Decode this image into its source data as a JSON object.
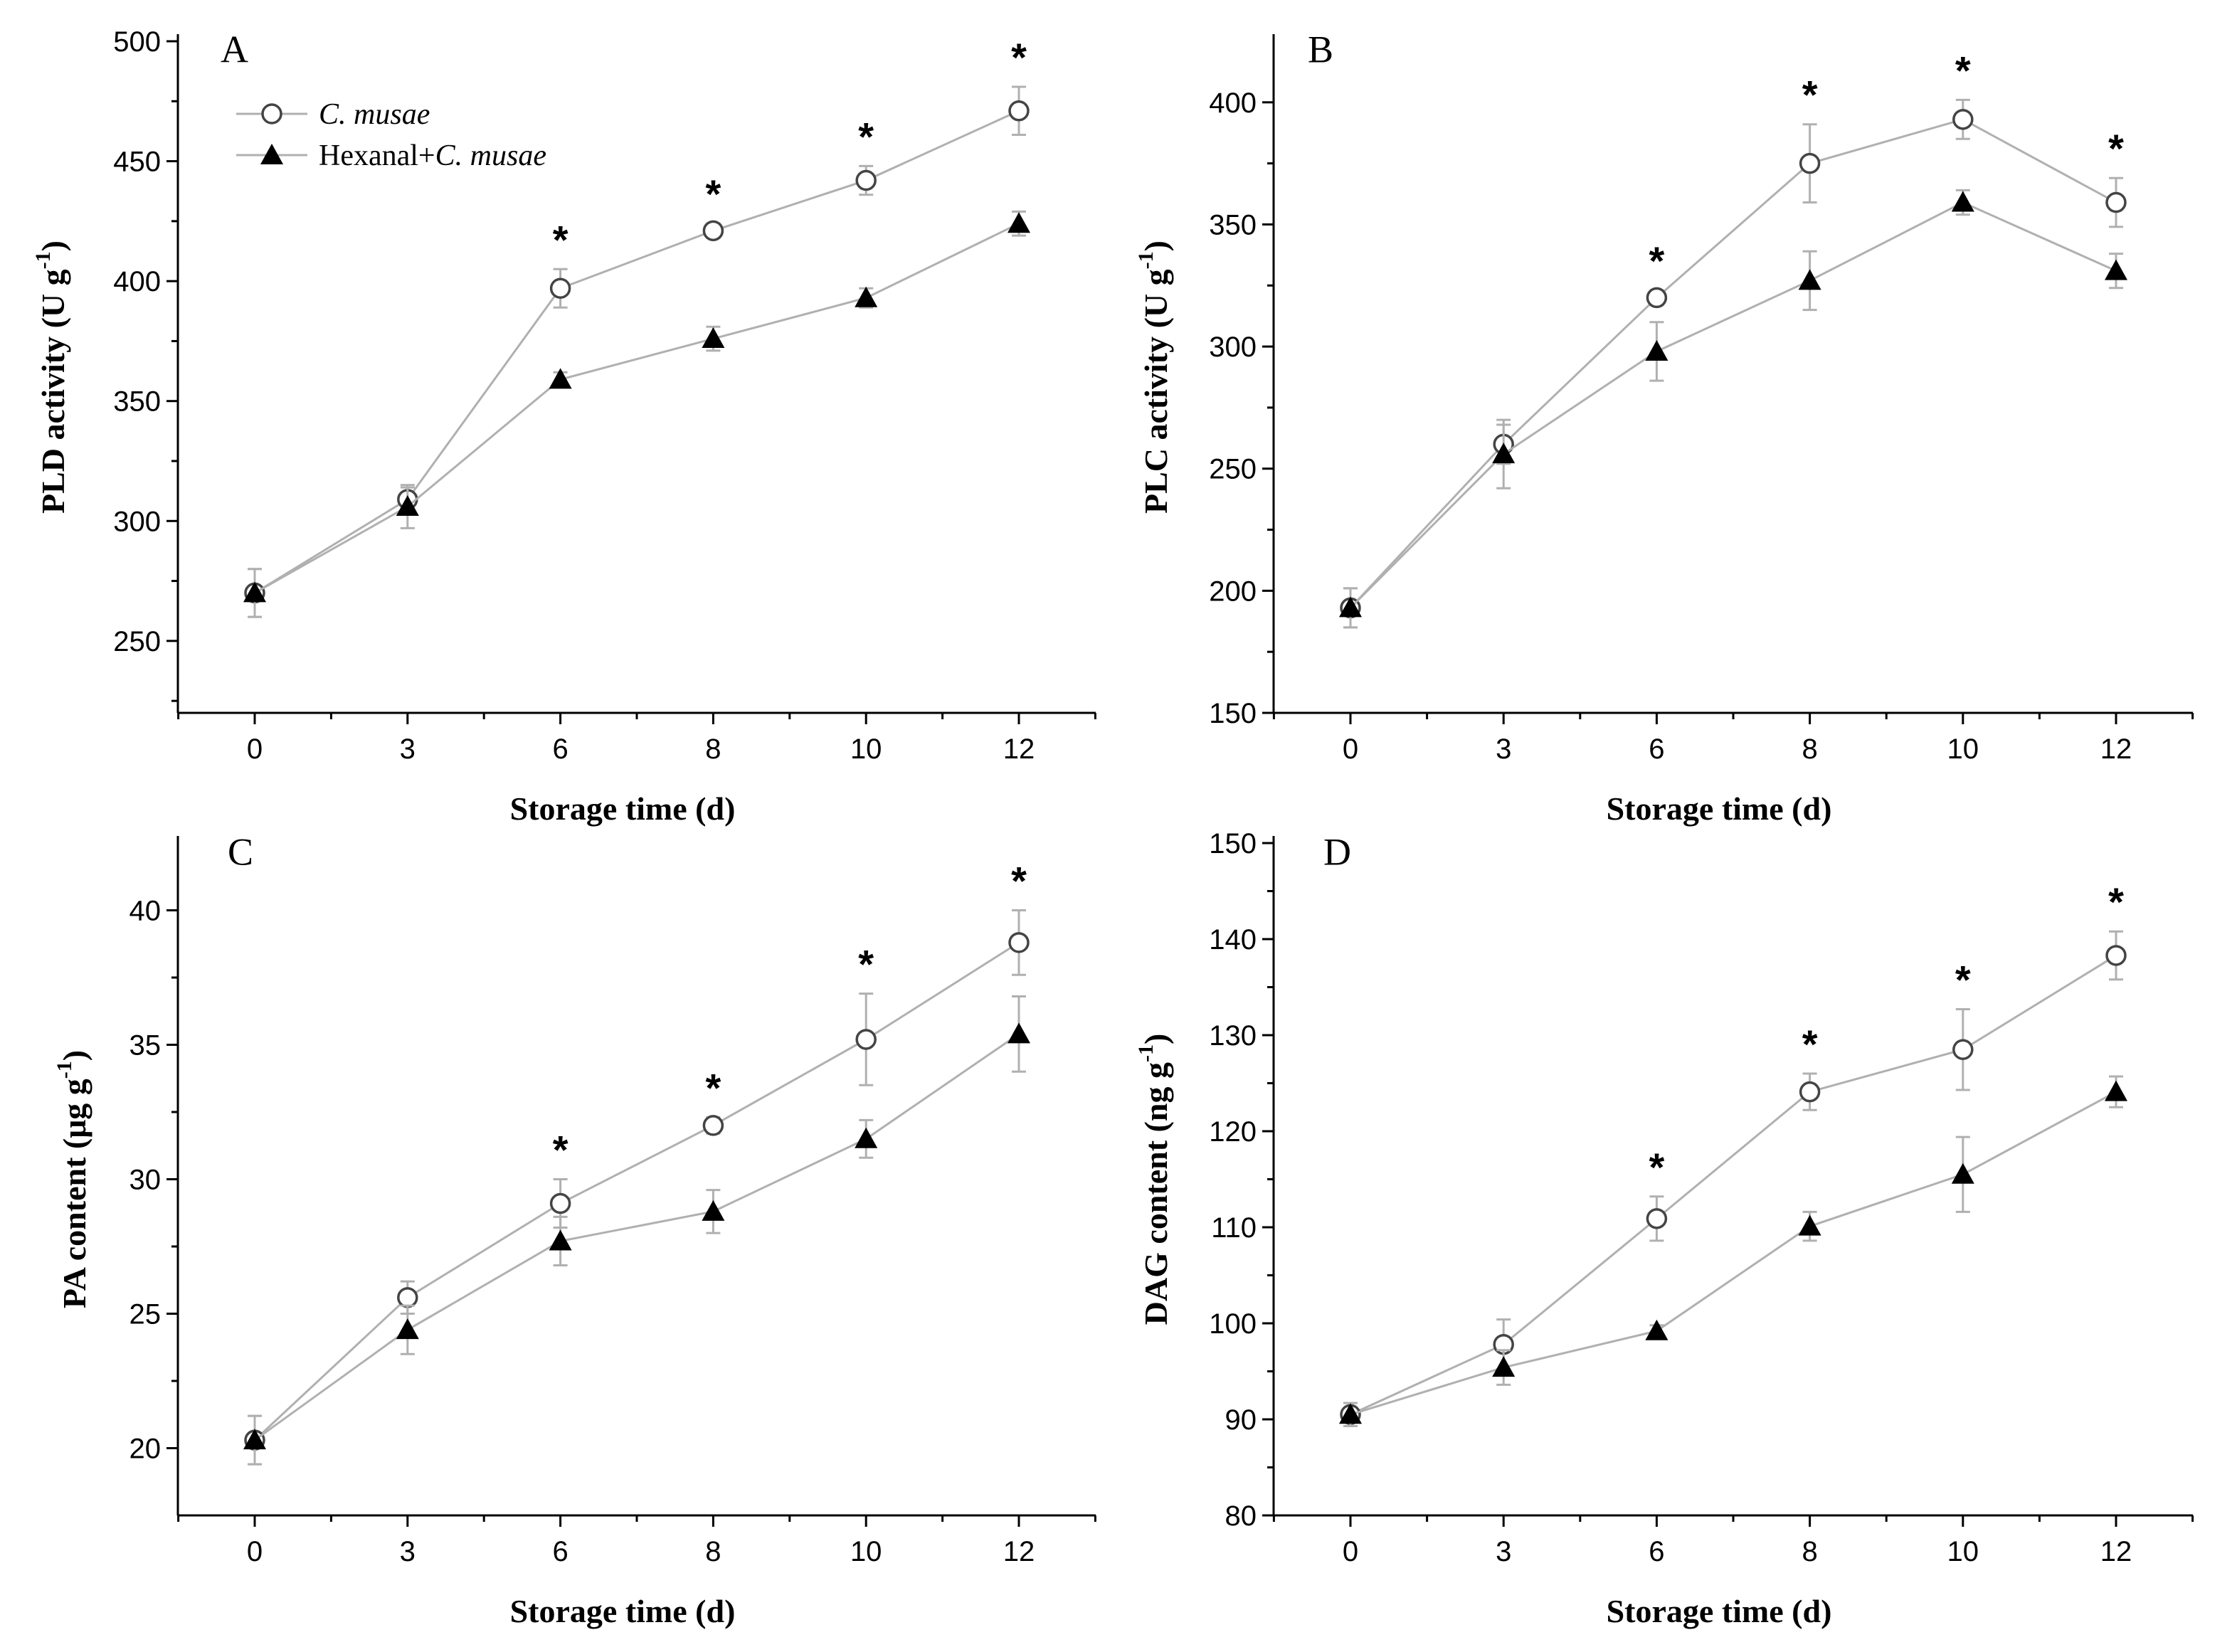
{
  "figure": {
    "legend": [
      {
        "name": "C. musae",
        "italic_part": "C. musae",
        "prefix": "",
        "marker": "open-circle"
      },
      {
        "name": "Hexanal+C. musae",
        "italic_part": "C. musae",
        "prefix": "Hexanal+",
        "marker": "filled-triangle"
      }
    ],
    "colors": {
      "line": "#b0b0b0",
      "axis": "#000000",
      "marker_fill": "#000000",
      "open_fill": "#ffffff"
    }
  },
  "chart_data": [
    {
      "type": "line",
      "panel": "A",
      "title": "",
      "xlabel": "Storage time (d)",
      "ylabel": "PLD activity",
      "ylabel_unit_base": "U g",
      "ylabel_unit_exp": "-1",
      "categories": [
        "0",
        "3",
        "6",
        "8",
        "10",
        "12"
      ],
      "ylim": [
        220,
        500
      ],
      "yticks": [
        "250",
        "300",
        "350",
        "400",
        "450",
        "500"
      ],
      "series": [
        {
          "name": "C. musae",
          "values": [
            270,
            309,
            397,
            421,
            442,
            471
          ],
          "errors": [
            10,
            5,
            8,
            3,
            6,
            10
          ]
        },
        {
          "name": "Hexanal+C. musae",
          "values": [
            270,
            306,
            359,
            376,
            393,
            424
          ],
          "errors": [
            10,
            9,
            3,
            5,
            4,
            5
          ]
        }
      ],
      "significance": [
        "",
        "",
        "*",
        "*",
        "*",
        "*"
      ]
    },
    {
      "type": "line",
      "panel": "B",
      "title": "",
      "xlabel": "Storage time (d)",
      "ylabel": "PLC activity",
      "ylabel_unit_base": "U g",
      "ylabel_unit_exp": "-1",
      "categories": [
        "0",
        "3",
        "6",
        "8",
        "10",
        "12"
      ],
      "ylim": [
        150,
        425
      ],
      "yticks": [
        "150",
        "200",
        "250",
        "300",
        "350",
        "400"
      ],
      "series": [
        {
          "name": "C. musae",
          "values": [
            193,
            260,
            320,
            375,
            393,
            359
          ],
          "errors": [
            8,
            8,
            3,
            16,
            8,
            10
          ]
        },
        {
          "name": "Hexanal+C. musae",
          "values": [
            193,
            256,
            298,
            327,
            359,
            331
          ],
          "errors": [
            8,
            14,
            12,
            12,
            5,
            7
          ]
        }
      ],
      "significance": [
        "",
        "",
        "*",
        "*",
        "*",
        "*"
      ]
    },
    {
      "type": "line",
      "panel": "C",
      "title": "",
      "xlabel": "Storage time (d)",
      "ylabel": "PA content",
      "ylabel_unit_base": "μg g",
      "ylabel_unit_exp": "-1",
      "categories": [
        "0",
        "3",
        "6",
        "8",
        "10",
        "12"
      ],
      "ylim": [
        17.5,
        42.5
      ],
      "yticks": [
        "20",
        "25",
        "30",
        "35",
        "40"
      ],
      "series": [
        {
          "name": "C. musae",
          "values": [
            20.3,
            25.6,
            29.1,
            32.0,
            35.2,
            38.8
          ],
          "errors": [
            0.9,
            0.6,
            0.9,
            0.3,
            1.7,
            1.2
          ]
        },
        {
          "name": "Hexanal+C. musae",
          "values": [
            20.3,
            24.4,
            27.7,
            28.8,
            31.5,
            35.4
          ],
          "errors": [
            0.9,
            0.9,
            0.9,
            0.8,
            0.7,
            1.4
          ]
        }
      ],
      "significance": [
        "",
        "",
        "*",
        "*",
        "*",
        "*"
      ]
    },
    {
      "type": "line",
      "panel": "D",
      "title": "",
      "xlabel": "Storage time (d)",
      "ylabel": "DAG content",
      "ylabel_unit_base": "ng g",
      "ylabel_unit_exp": "-1",
      "categories": [
        "0",
        "3",
        "6",
        "8",
        "10",
        "12"
      ],
      "ylim": [
        80,
        150
      ],
      "yticks": [
        "80",
        "90",
        "100",
        "110",
        "120",
        "130",
        "140",
        "150"
      ],
      "series": [
        {
          "name": "C. musae",
          "values": [
            90.5,
            97.8,
            110.9,
            124.1,
            128.5,
            138.3
          ],
          "errors": [
            1.2,
            2.6,
            2.3,
            1.9,
            4.2,
            2.5
          ]
        },
        {
          "name": "Hexanal+C. musae",
          "values": [
            90.5,
            95.4,
            99.2,
            110.1,
            115.5,
            124.1
          ],
          "errors": [
            1.2,
            1.8,
            0.6,
            1.5,
            3.9,
            1.6
          ]
        }
      ],
      "significance": [
        "",
        "",
        "*",
        "*",
        "*",
        "*"
      ]
    }
  ]
}
